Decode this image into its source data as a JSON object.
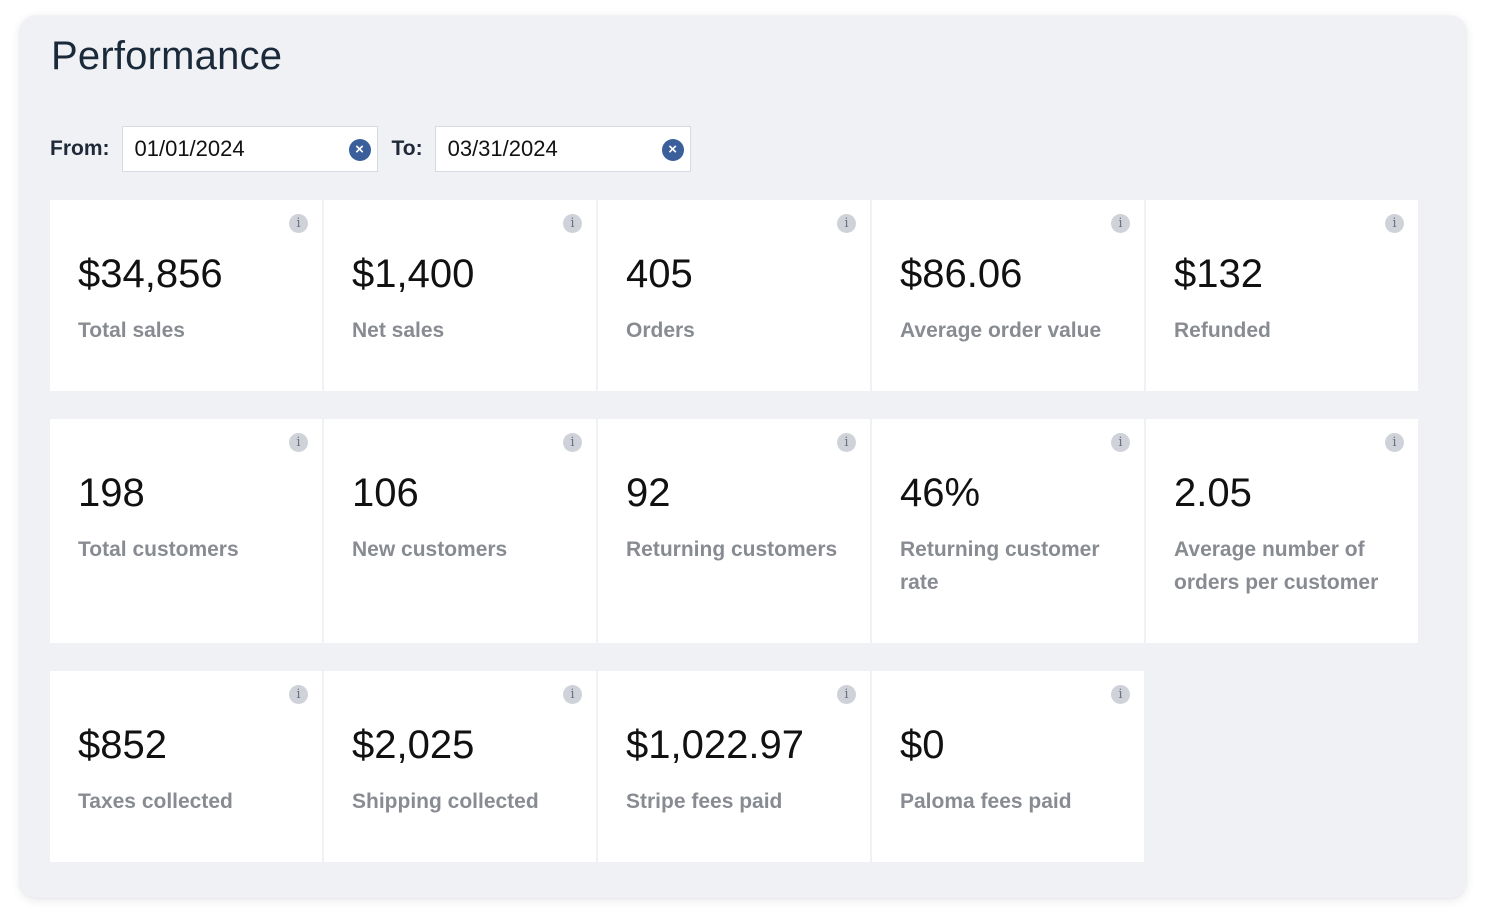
{
  "page": {
    "title": "Performance"
  },
  "date_range": {
    "from_label": "From:",
    "from_value": "01/01/2024",
    "to_label": "To:",
    "to_value": "03/31/2024",
    "clear_symbol": "×"
  },
  "info_symbol": "i",
  "metrics": [
    {
      "value": "$34,856",
      "label": "Total sales"
    },
    {
      "value": "$1,400",
      "label": "Net sales"
    },
    {
      "value": "405",
      "label": "Orders"
    },
    {
      "value": "$86.06",
      "label": "Average order value"
    },
    {
      "value": "$132",
      "label": "Refunded"
    },
    {
      "value": "198",
      "label": "Total customers"
    },
    {
      "value": "106",
      "label": "New customers"
    },
    {
      "value": "92",
      "label": "Returning customers"
    },
    {
      "value": "46%",
      "label": "Returning customer rate"
    },
    {
      "value": "2.05",
      "label": "Average number of orders per customer"
    },
    {
      "value": "$852",
      "label": "Taxes collected"
    },
    {
      "value": "$2,025",
      "label": "Shipping collected"
    },
    {
      "value": "$1,022.97",
      "label": "Stripe fees paid"
    },
    {
      "value": "$0",
      "label": "Paloma fees paid"
    }
  ],
  "colors": {
    "panel_bg": "#eff1f5",
    "clear_button": "#3b5f9a",
    "label_text": "#888c92"
  }
}
